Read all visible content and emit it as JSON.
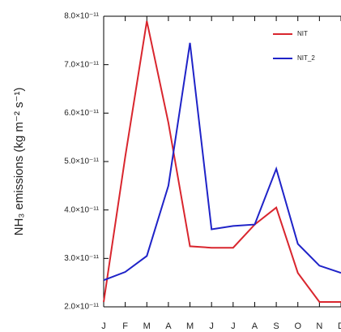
{
  "chart_data": {
    "type": "line",
    "y_label": "NH₃ emissions (kg m⁻² s⁻¹)",
    "categories": [
      "J",
      "F",
      "M",
      "A",
      "M",
      "J",
      "J",
      "A",
      "S",
      "O",
      "N",
      "D"
    ],
    "series": [
      {
        "name": "NIT",
        "color": "#d9262e",
        "values": [
          2.1e-11,
          5.1e-11,
          7.9e-11,
          5.8e-11,
          3.25e-11,
          3.22e-11,
          3.22e-11,
          3.7e-11,
          4.05e-11,
          2.7e-11,
          2.1e-11,
          2.1e-11
        ]
      },
      {
        "name": "NIT_2",
        "color": "#1f23c8",
        "values": [
          2.55e-11,
          2.72e-11,
          3.05e-11,
          4.5e-11,
          7.45e-11,
          3.6e-11,
          3.67e-11,
          3.7e-11,
          4.85e-11,
          3.3e-11,
          2.85e-11,
          2.7e-11
        ]
      }
    ],
    "ylim": [
      2e-11,
      8e-11
    ],
    "yticks": [
      {
        "value": 2e-11,
        "label": "2.0×10⁻¹¹"
      },
      {
        "value": 3e-11,
        "label": "3.0×10⁻¹¹"
      },
      {
        "value": 4e-11,
        "label": "4.0×10⁻¹¹"
      },
      {
        "value": 5e-11,
        "label": "5.0×10⁻¹¹"
      },
      {
        "value": 6e-11,
        "label": "6.0×10⁻¹¹"
      },
      {
        "value": 7e-11,
        "label": "7.0×10⁻¹¹"
      },
      {
        "value": 8e-11,
        "label": "8.0×10⁻¹¹"
      }
    ],
    "legend": "upper-right"
  }
}
